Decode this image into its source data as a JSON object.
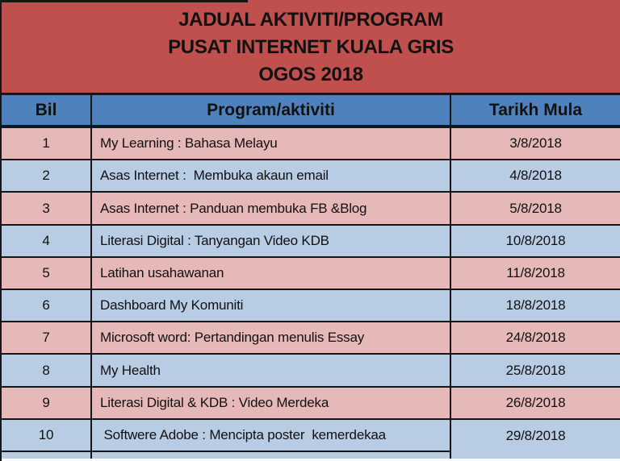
{
  "title": {
    "lines": [
      "JADUAL AKTIVITI/PROGRAM",
      "PUSAT INTERNET KUALA GRIS",
      "OGOS 2018"
    ]
  },
  "table": {
    "columns": [
      "Bil",
      "Program/aktiviti",
      "Tarikh Mula"
    ],
    "rows": [
      {
        "bil": "1",
        "program": "My Learning : Bahasa Melayu",
        "tarikh": "3/8/2018"
      },
      {
        "bil": "2",
        "program": "Asas Internet :  Membuka akaun email",
        "tarikh": "4/8/2018"
      },
      {
        "bil": "3",
        "program": "Asas Internet : Panduan membuka FB &Blog",
        "tarikh": "5/8/2018"
      },
      {
        "bil": "4",
        "program": "Literasi Digital : Tanyangan Video KDB",
        "tarikh": "10/8/2018"
      },
      {
        "bil": "5",
        "program": "Latihan usahawanan",
        "tarikh": "11/8/2018"
      },
      {
        "bil": "6",
        "program": "Dashboard My Komuniti",
        "tarikh": "18/8/2018"
      },
      {
        "bil": "7",
        "program": "Microsoft word: Pertandingan menulis Essay",
        "tarikh": "24/8/2018"
      },
      {
        "bil": "8",
        "program": "My Health",
        "tarikh": "25/8/2018"
      },
      {
        "bil": "9",
        "program": "Literasi Digital & KDB : Video Merdeka",
        "tarikh": "26/8/2018"
      },
      {
        "bil": "10",
        "program": " Softwere Adobe : Mencipta poster  kemerdekaa",
        "tarikh": "29/8/2018"
      }
    ]
  },
  "colors": {
    "title_bg": "#c0504d",
    "header_bg": "#4f81bd",
    "row_pink": "#e6b9b8",
    "row_blue": "#b8cce4",
    "border": "#161616",
    "text": "#111111"
  }
}
